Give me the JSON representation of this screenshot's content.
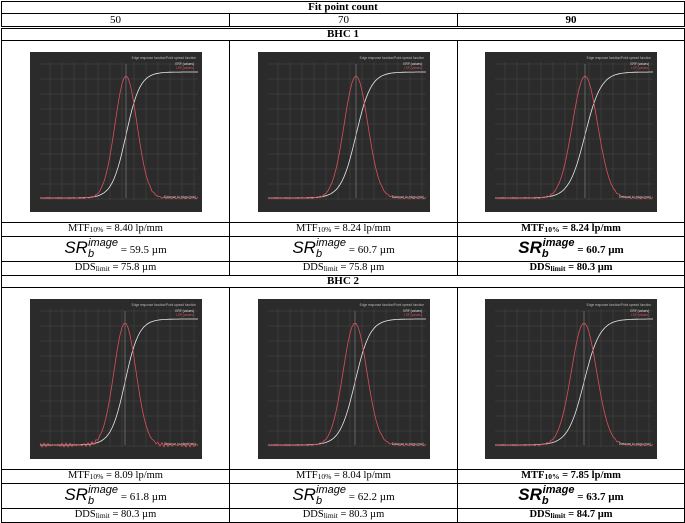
{
  "title": "Fit point count",
  "columns": [
    "50",
    "70",
    "90"
  ],
  "sr_symbol": "SR",
  "sr_sub": "b",
  "sr_sup": "image",
  "mtf_prefix": "MTF",
  "mtf_sub": "10%",
  "dds_prefix": "DDS",
  "dds_sub": "limit",
  "sections": [
    {
      "name": "BHC 1",
      "cells": [
        {
          "mtf": " = 8.40 lp/mm",
          "sr": " = 59.5 µm",
          "dds": " = 75.8 µm",
          "bold": false
        },
        {
          "mtf": " = 8.24 lp/mm",
          "sr": " = 60.7 µm",
          "dds": " = 75.8 µm",
          "bold": false
        },
        {
          "mtf": " = 8.24 lp/mm",
          "sr": " = 60.7 µm",
          "dds": " = 80.3 µm",
          "bold": true
        }
      ]
    },
    {
      "name": "BHC 2",
      "cells": [
        {
          "mtf": " = 8.09 lp/mm",
          "sr": " = 61.8 µm",
          "dds": " = 80.3 µm",
          "bold": false
        },
        {
          "mtf": " = 8.04 lp/mm",
          "sr": " = 62.2 µm",
          "dds": " = 80.3 µm",
          "bold": false
        },
        {
          "mtf": " = 7.85 lp/mm",
          "sr": " = 63.7 µm",
          "dds": " = 84.7 µm",
          "bold": true
        }
      ]
    }
  ],
  "plot": {
    "title": "Edge response function/Point spread function",
    "legend": [
      "ERF (values)",
      "LSF (values)"
    ],
    "xlabel": "Distance to edge (mm)",
    "background": "#2b2b2b",
    "grid_color": "#4a4a4a",
    "erf_color": "#e8e8e8",
    "lsf_color": "#d9505a"
  }
}
